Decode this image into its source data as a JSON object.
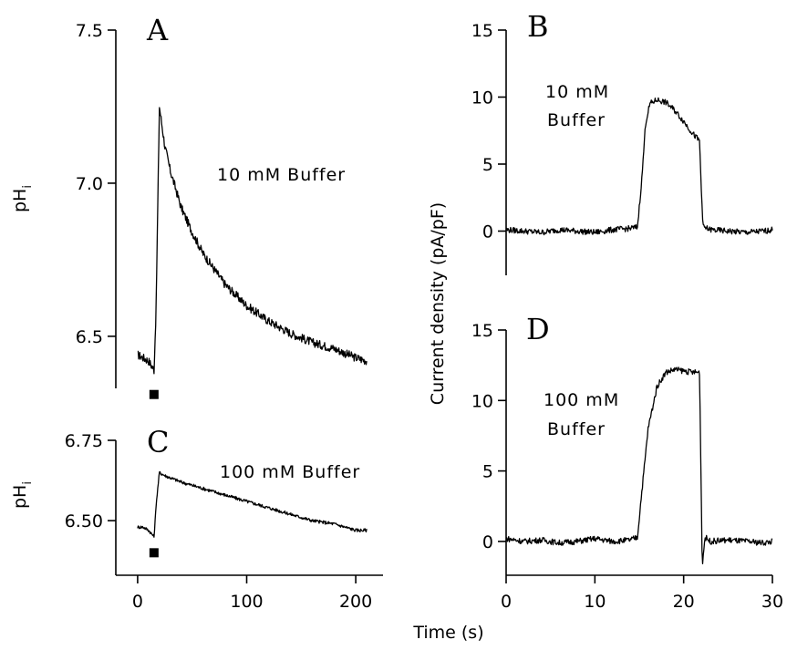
{
  "figure": {
    "xlabel": "Time (s)",
    "ylabel_left": "pH",
    "ylabel_left_sub": "i",
    "ylabel_right": "Current density (pA/pF)"
  },
  "chart_data": [
    {
      "panel": "A",
      "type": "line",
      "ylabel": "pH",
      "ylabel_sub": "i",
      "annotation": "10 mM Buffer",
      "xlim": [
        -20,
        225
      ],
      "ylim": [
        6.33,
        7.5
      ],
      "yticks": [
        6.5,
        7.0,
        7.5
      ],
      "ytick_labels": [
        "6.5",
        "7.0",
        "7.5"
      ],
      "xticks": [],
      "marker": {
        "x": 15,
        "y": 6.31
      },
      "series": [
        {
          "x": [
            0,
            5,
            10,
            15,
            17,
            20,
            25,
            30,
            40,
            50,
            60,
            80,
            100,
            120,
            140,
            160,
            180,
            200,
            210
          ],
          "y": [
            6.44,
            6.43,
            6.42,
            6.39,
            6.6,
            7.25,
            7.12,
            7.04,
            6.92,
            6.84,
            6.77,
            6.67,
            6.6,
            6.55,
            6.51,
            6.48,
            6.46,
            6.43,
            6.42
          ]
        }
      ]
    },
    {
      "panel": "C",
      "type": "line",
      "ylabel": "pH",
      "ylabel_sub": "i",
      "annotation": "100 mM Buffer",
      "xlim": [
        -20,
        225
      ],
      "ylim": [
        6.33,
        6.75
      ],
      "yticks": [
        6.5,
        6.75
      ],
      "ytick_labels": [
        "6.50",
        "6.75"
      ],
      "xticks": [
        0,
        100,
        200
      ],
      "xtick_labels": [
        "0",
        "100",
        "200"
      ],
      "marker": {
        "x": 15,
        "y": 6.4
      },
      "series": [
        {
          "x": [
            0,
            5,
            10,
            15,
            17,
            20,
            25,
            40,
            60,
            80,
            100,
            120,
            140,
            160,
            180,
            200,
            210
          ],
          "y": [
            6.48,
            6.48,
            6.47,
            6.45,
            6.55,
            6.65,
            6.64,
            6.62,
            6.6,
            6.58,
            6.56,
            6.54,
            6.52,
            6.5,
            6.49,
            6.47,
            6.47
          ]
        }
      ]
    },
    {
      "panel": "B",
      "type": "line",
      "annotation_line1": "10  mM",
      "annotation_line2": "Buffer",
      "xlim": [
        0,
        30
      ],
      "ylim": [
        -3.3,
        15
      ],
      "yticks": [
        0,
        5,
        10,
        15
      ],
      "ytick_labels": [
        "0",
        "5",
        "10",
        "15"
      ],
      "xticks": [],
      "series": [
        {
          "x": [
            0,
            2,
            4,
            6,
            8,
            10,
            12,
            14,
            14.8,
            15.3,
            15.7,
            16.2,
            17,
            18,
            19,
            20,
            21,
            21.8,
            22,
            22.2,
            23,
            25,
            27,
            29,
            30
          ],
          "y": [
            0.1,
            0,
            -0.1,
            0.1,
            0,
            -0.1,
            0.1,
            0.2,
            0.3,
            4,
            8,
            9.5,
            9.8,
            9.6,
            9,
            8.2,
            7.3,
            6.7,
            3,
            0.3,
            0.1,
            0,
            -0.1,
            0,
            0.1
          ]
        }
      ]
    },
    {
      "panel": "D",
      "type": "line",
      "annotation_line1": "100 mM",
      "annotation_line2": "Buffer",
      "xlim": [
        0,
        30
      ],
      "ylim": [
        -2.4,
        15
      ],
      "yticks": [
        0,
        5,
        10,
        15
      ],
      "ytick_labels": [
        "0",
        "5",
        "10",
        "15"
      ],
      "xticks": [
        0,
        10,
        20,
        30
      ],
      "xtick_labels": [
        "0",
        "10",
        "20",
        "30"
      ],
      "series": [
        {
          "x": [
            0,
            2,
            4,
            6,
            8,
            10,
            12,
            14,
            14.8,
            15.2,
            16,
            17,
            18,
            19,
            20,
            21,
            21.8,
            22.1,
            22.4,
            23,
            25,
            27,
            29,
            30
          ],
          "y": [
            0.2,
            0,
            0.1,
            -0.1,
            0,
            0.2,
            0,
            0.1,
            0.3,
            3,
            8,
            11,
            12,
            12.2,
            12.1,
            12,
            12,
            -1.8,
            0.3,
            0,
            0.1,
            0,
            -0.1,
            0
          ]
        }
      ]
    }
  ]
}
